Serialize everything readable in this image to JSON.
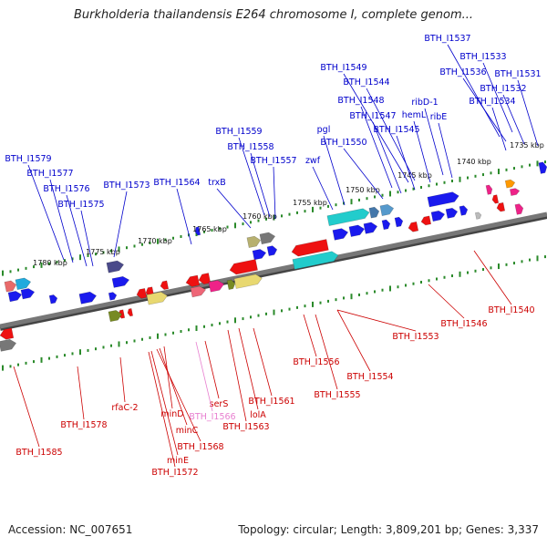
{
  "title": "Burkholderia thailandensis E264 chromosome I, complete genom...",
  "footer": {
    "accession": "Accession: NC_007651",
    "summary": "Topology: circular; Length: 3,809,201 bp; Genes: 3,337"
  },
  "colors": {
    "top_label": "#0000cc",
    "bottom_label": "#cc0000",
    "pink_label": "#e87fd0",
    "backbone": "#777777",
    "tick": "#2a8a2a"
  },
  "scale_ticks": [
    "1735 kbp",
    "1740 kbp",
    "1745 kbp",
    "1750 kbp",
    "1755 kbp",
    "1760 kbp",
    "1765 kbp",
    "1770 kbp",
    "1775 kbp",
    "1780 kbp"
  ],
  "top_labels": [
    "BTH_I1537",
    "BTH_I1533",
    "BTH_I1536",
    "BTH_I1531",
    "BTH_I1532",
    "BTH_I1534",
    "BTH_I1549",
    "BTH_I1544",
    "ribD-1",
    "BTH_I1548",
    "hemL",
    "BTH_I1547",
    "ribE",
    "BTH_I1545",
    "pgl",
    "BTH_I1550",
    "BTH_I1559",
    "BTH_I1558",
    "zwf",
    "BTH_I1557",
    "BTH_I1579",
    "BTH_I1577",
    "BTH_I1576",
    "BTH_I1573",
    "BTH_I1564",
    "trxB",
    "BTH_I1575"
  ],
  "bottom_labels": [
    "BTH_I1540",
    "BTH_I1546",
    "BTH_I1553",
    "BTH_I1556",
    "BTH_I1554",
    "BTH_I1555",
    "BTH_I1561",
    "lolA",
    "BTH_I1563",
    "serS",
    "BTH_I1566",
    "minD",
    "minC",
    "BTH_I1568",
    "minE",
    "BTH_I1572",
    "rfaC-2",
    "BTH_I1578",
    "BTH_I1585"
  ]
}
